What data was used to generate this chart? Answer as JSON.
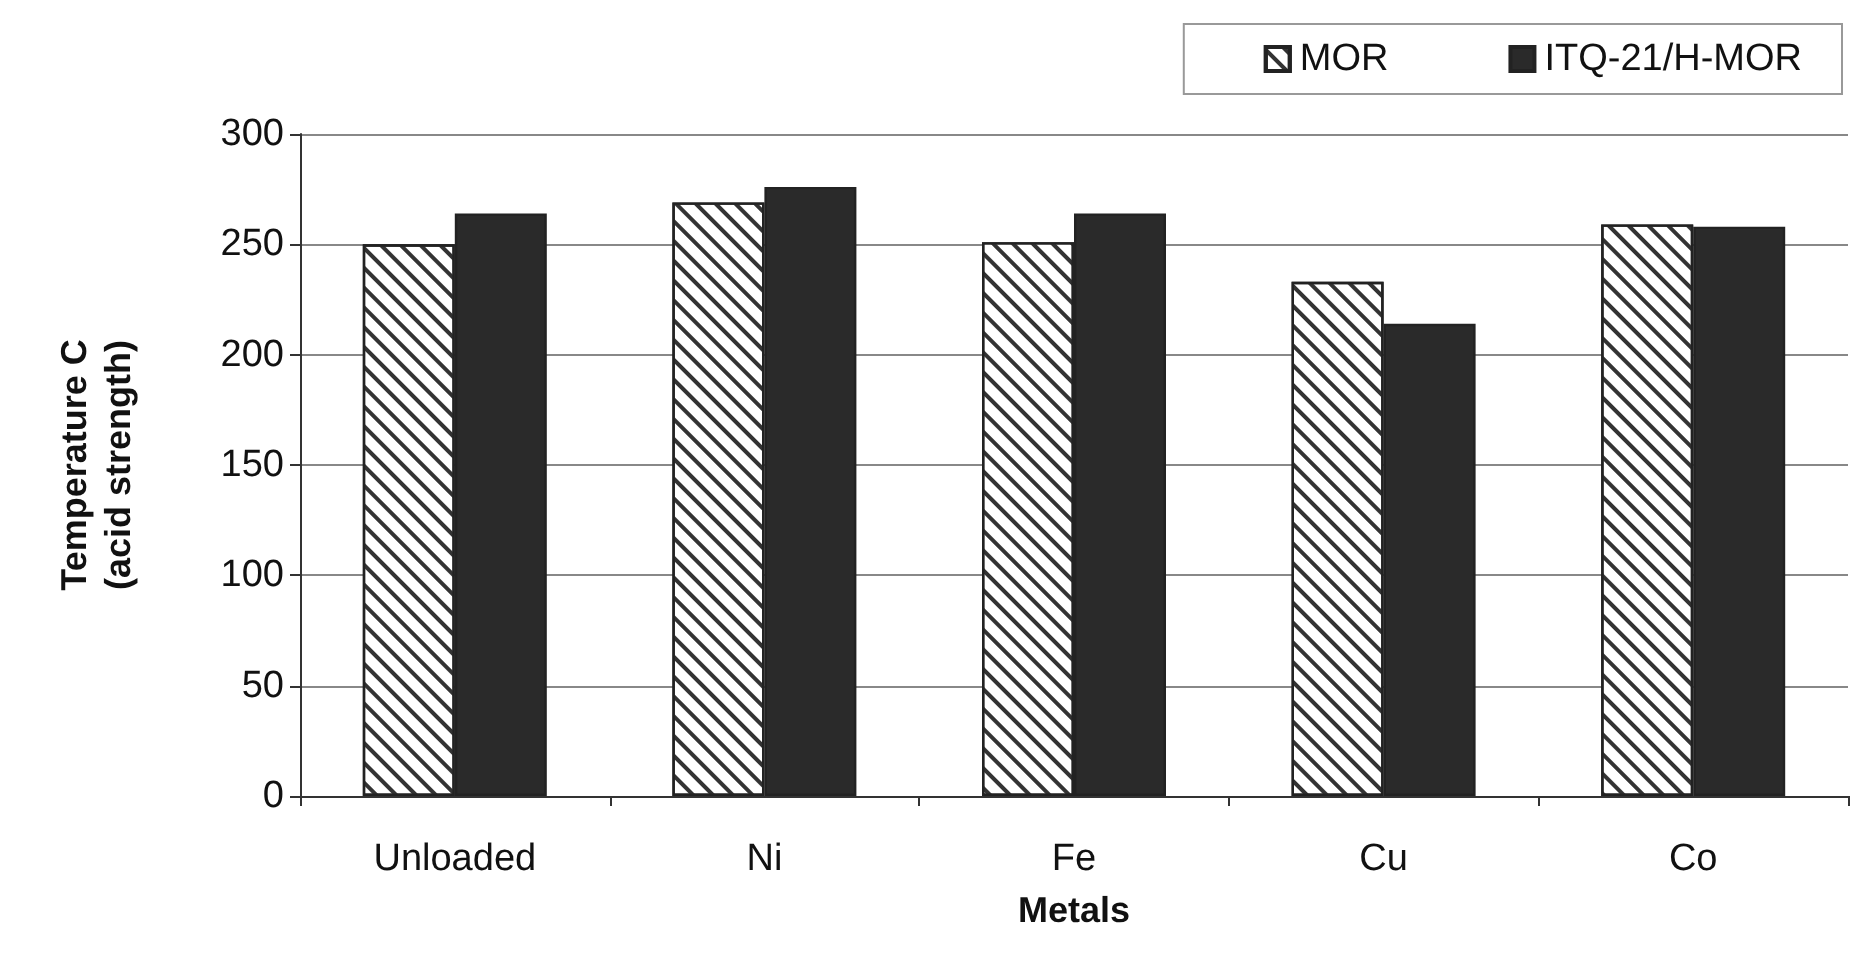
{
  "chart_data": {
    "type": "bar",
    "xlabel": "Metals",
    "ylabel": "Temperature C\n(acid strength)",
    "categories": [
      "Unloaded",
      "Ni",
      "Fe",
      "Cu",
      "Co"
    ],
    "series": [
      {
        "name": "MOR",
        "color": "#ffffff",
        "values": [
          250,
          269,
          251,
          233,
          259
        ]
      },
      {
        "name": "ITQ-21/H-MOR",
        "color": "#2a2a2a",
        "values": [
          264,
          276,
          264,
          214,
          258
        ]
      }
    ],
    "ylim": [
      0,
      300
    ],
    "yticks": [
      0,
      50,
      100,
      150,
      200,
      250,
      300
    ],
    "grid": "y",
    "legend": "top right"
  }
}
